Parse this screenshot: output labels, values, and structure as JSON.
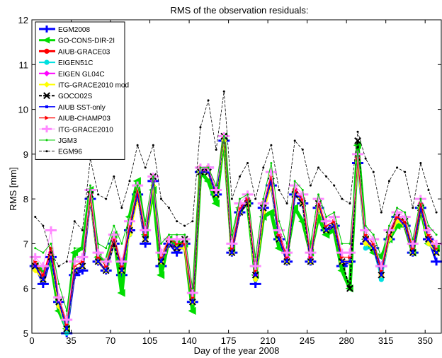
{
  "chart_data": {
    "type": "line",
    "title": "RMS of the observation residuals:",
    "xlabel": "Day of the year 2008",
    "ylabel": "RMS [mm]",
    "xlim": [
      0,
      365
    ],
    "ylim": [
      5,
      12
    ],
    "xticks": [
      0,
      35,
      70,
      105,
      140,
      175,
      210,
      245,
      280,
      315,
      350
    ],
    "yticks": [
      5,
      6,
      7,
      8,
      9,
      10,
      11,
      12
    ],
    "grid": false,
    "legend_position": "top-left",
    "x": [
      3,
      10,
      17,
      24,
      31,
      38,
      45,
      52,
      59,
      66,
      73,
      80,
      87,
      94,
      101,
      108,
      115,
      122,
      129,
      136,
      143,
      150,
      157,
      164,
      171,
      178,
      185,
      192,
      199,
      206,
      213,
      220,
      227,
      234,
      241,
      248,
      255,
      262,
      269,
      276,
      283,
      290,
      297,
      304,
      311,
      318,
      325,
      332,
      339,
      346,
      353,
      360
    ],
    "series": [
      {
        "name": "EGM2008",
        "color": "#0000ff",
        "style": "solid",
        "marker": "plus",
        "values": [
          6.5,
          6.1,
          6.7,
          5.7,
          5.0,
          6.3,
          6.4,
          8.0,
          6.6,
          6.4,
          7.0,
          6.3,
          7.3,
          8.1,
          7.0,
          8.4,
          6.5,
          7.0,
          6.8,
          7.0,
          5.7,
          8.6,
          8.7,
          8.1,
          9.3,
          6.8,
          7.7,
          7.9,
          6.1,
          7.8,
          8.3,
          7.1,
          6.6,
          8.1,
          7.9,
          6.6,
          7.8,
          7.3,
          7.4,
          6.5,
          6.6,
          8.8,
          7.0,
          6.9,
          6.5,
          7.1,
          7.6,
          7.4,
          6.8,
          7.8,
          7.1,
          6.6
        ]
      },
      {
        "name": "GO-CONS-DIR-2I",
        "color": "#00dd00",
        "style": "solid",
        "marker": "triangle-left",
        "values": [
          6.5,
          6.4,
          6.6,
          5.5,
          5.1,
          6.8,
          6.9,
          8.2,
          6.7,
          6.6,
          7.2,
          5.9,
          7.6,
          8.4,
          7.2,
          8.2,
          6.3,
          7.1,
          7.0,
          7.0,
          5.5,
          8.6,
          8.4,
          7.9,
          9.4,
          6.9,
          7.8,
          7.9,
          6.3,
          7.6,
          7.7,
          6.9,
          6.8,
          7.8,
          7.5,
          6.8,
          7.6,
          7.2,
          7.3,
          6.4,
          6.0,
          9.2,
          7.1,
          6.8,
          6.7,
          7.1,
          7.4,
          7.4,
          6.8,
          7.8,
          7.0,
          6.9
        ]
      },
      {
        "name": "AIUB-GRACE03",
        "color": "#ff0000",
        "style": "solid",
        "marker": "circle",
        "values": [
          6.5,
          6.2,
          6.8,
          5.6,
          5.1,
          6.4,
          6.5,
          8.1,
          6.6,
          6.4,
          7.1,
          6.4,
          7.3,
          8.1,
          7.1,
          8.4,
          6.6,
          7.0,
          6.9,
          6.9,
          5.7,
          8.6,
          8.6,
          8.1,
          9.4,
          6.8,
          7.7,
          8.0,
          6.3,
          7.7,
          8.4,
          7.2,
          6.6,
          8.2,
          8.0,
          6.6,
          7.9,
          7.3,
          7.4,
          6.6,
          6.6,
          8.9,
          7.1,
          6.9,
          6.3,
          7.2,
          7.6,
          7.4,
          6.8,
          7.8,
          7.1,
          6.8
        ]
      },
      {
        "name": "EIGEN51C",
        "color": "#00e0e0",
        "style": "solid",
        "marker": "circle",
        "values": [
          6.5,
          6.2,
          6.7,
          5.6,
          5.0,
          6.4,
          6.5,
          8.0,
          6.6,
          6.4,
          7.0,
          6.4,
          7.2,
          8.1,
          7.1,
          8.4,
          6.6,
          7.0,
          6.9,
          6.9,
          5.7,
          8.6,
          8.6,
          8.1,
          9.4,
          6.8,
          7.7,
          7.9,
          6.2,
          7.8,
          8.3,
          7.1,
          6.6,
          8.1,
          7.9,
          6.6,
          7.8,
          7.3,
          7.4,
          6.6,
          6.6,
          8.8,
          6.9,
          6.9,
          6.2,
          7.1,
          7.5,
          7.4,
          6.8,
          7.8,
          7.0,
          6.8
        ]
      },
      {
        "name": "EIGEN GL04C",
        "color": "#ff00ff",
        "style": "solid",
        "marker": "diamond",
        "values": [
          6.5,
          6.2,
          6.8,
          5.7,
          5.1,
          6.4,
          6.5,
          8.1,
          6.6,
          6.4,
          7.1,
          6.4,
          7.3,
          8.1,
          7.1,
          8.4,
          6.6,
          7.0,
          6.9,
          7.0,
          5.7,
          8.6,
          8.7,
          8.1,
          9.4,
          6.8,
          7.8,
          8.0,
          6.3,
          7.8,
          8.4,
          7.2,
          6.7,
          8.2,
          8.0,
          6.7,
          7.9,
          7.3,
          7.4,
          6.6,
          6.6,
          8.9,
          7.1,
          6.9,
          6.3,
          7.2,
          7.6,
          7.4,
          6.8,
          7.9,
          7.1,
          6.8
        ]
      },
      {
        "name": "ITG-GRACE2010 mod",
        "color": "#ffff00",
        "style": "solid",
        "marker": "diamond",
        "values": [
          6.4,
          6.2,
          6.7,
          5.6,
          5.1,
          6.4,
          6.5,
          8.0,
          6.6,
          6.4,
          7.0,
          6.4,
          7.2,
          8.0,
          7.1,
          8.3,
          6.6,
          7.0,
          6.9,
          6.9,
          5.7,
          8.6,
          8.6,
          8.1,
          9.3,
          6.8,
          7.7,
          7.9,
          6.2,
          7.7,
          8.3,
          7.1,
          6.6,
          8.1,
          7.9,
          6.6,
          7.8,
          7.3,
          7.4,
          6.6,
          6.6,
          8.8,
          7.0,
          6.9,
          6.3,
          7.1,
          7.5,
          7.4,
          6.8,
          7.8,
          7.0,
          6.8
        ]
      },
      {
        "name": "GOCO02S",
        "color": "#000000",
        "style": "dashed",
        "marker": "x",
        "values": [
          6.5,
          6.2,
          6.7,
          5.7,
          5.1,
          6.4,
          6.5,
          8.1,
          6.6,
          6.4,
          7.0,
          6.4,
          7.3,
          8.1,
          7.1,
          8.5,
          6.6,
          7.0,
          6.9,
          7.1,
          5.7,
          8.6,
          8.6,
          8.1,
          9.4,
          6.8,
          7.7,
          7.9,
          6.3,
          7.8,
          8.4,
          7.1,
          6.6,
          8.1,
          7.9,
          6.6,
          7.9,
          7.3,
          7.4,
          6.6,
          6.0,
          9.3,
          7.1,
          6.9,
          6.3,
          7.2,
          7.6,
          7.5,
          6.8,
          7.8,
          7.1,
          6.8
        ]
      },
      {
        "name": "AIUB SST-only",
        "color": "#0000ff",
        "style": "solid",
        "marker": "square",
        "values": [
          6.5,
          6.2,
          6.7,
          5.7,
          5.1,
          6.4,
          6.5,
          8.1,
          6.6,
          6.4,
          7.1,
          6.4,
          7.3,
          8.1,
          7.1,
          8.4,
          6.6,
          7.0,
          6.9,
          7.0,
          5.7,
          8.6,
          8.6,
          8.1,
          9.4,
          6.8,
          7.7,
          8.0,
          6.3,
          7.8,
          8.4,
          7.1,
          6.6,
          8.1,
          8.0,
          6.6,
          7.9,
          7.3,
          7.4,
          6.6,
          6.6,
          8.9,
          7.1,
          6.9,
          6.3,
          7.2,
          7.6,
          7.4,
          6.8,
          7.8,
          7.1,
          6.8
        ]
      },
      {
        "name": "AIUB-CHAMP03",
        "color": "#ff0000",
        "style": "solid",
        "marker": "triangle-right",
        "values": [
          6.6,
          6.3,
          6.9,
          5.8,
          5.2,
          6.5,
          6.6,
          8.1,
          6.7,
          6.5,
          7.1,
          6.5,
          7.4,
          8.2,
          7.2,
          8.5,
          6.7,
          7.1,
          7.0,
          7.0,
          5.8,
          8.7,
          8.7,
          8.2,
          9.4,
          6.9,
          7.8,
          8.0,
          6.4,
          7.9,
          8.5,
          7.2,
          6.7,
          8.2,
          8.0,
          6.7,
          7.9,
          7.4,
          7.5,
          6.7,
          6.7,
          8.9,
          7.2,
          7.0,
          6.4,
          7.2,
          7.6,
          7.5,
          6.9,
          7.9,
          7.2,
          6.9
        ]
      },
      {
        "name": "ITG-GRACE2010",
        "color": "#ff88ff",
        "style": "solid",
        "marker": "plus",
        "values": [
          6.7,
          6.5,
          7.3,
          5.8,
          5.3,
          6.6,
          6.7,
          8.2,
          6.8,
          6.6,
          7.2,
          6.6,
          7.5,
          8.3,
          7.3,
          8.5,
          6.8,
          7.1,
          7.1,
          7.1,
          5.9,
          8.7,
          8.7,
          8.2,
          9.4,
          7.0,
          7.9,
          8.1,
          6.5,
          7.9,
          8.6,
          7.3,
          6.8,
          8.3,
          8.1,
          6.8,
          8.0,
          7.5,
          7.6,
          6.8,
          6.8,
          9.0,
          7.3,
          7.1,
          6.5,
          7.3,
          7.7,
          7.6,
          7.0,
          8.0,
          7.3,
          7.0
        ]
      },
      {
        "name": "JGM3",
        "color": "#00cc00",
        "style": "solid",
        "marker": "dot",
        "values": [
          6.9,
          6.8,
          7.0,
          6.1,
          5.5,
          6.9,
          6.9,
          8.3,
          7.0,
          6.9,
          7.4,
          7.0,
          7.6,
          8.3,
          7.5,
          8.5,
          7.0,
          7.2,
          7.2,
          7.2,
          6.0,
          8.7,
          8.7,
          8.3,
          9.4,
          7.2,
          8.0,
          8.1,
          6.7,
          8.0,
          8.8,
          7.5,
          7.0,
          8.4,
          8.2,
          7.0,
          8.1,
          7.6,
          7.7,
          7.0,
          7.0,
          9.1,
          7.4,
          7.2,
          6.7,
          7.4,
          7.8,
          7.7,
          7.1,
          8.0,
          7.4,
          7.2
        ]
      },
      {
        "name": "EGM96",
        "color": "#000000",
        "style": "dashed",
        "marker": "dot",
        "values": [
          7.6,
          7.4,
          6.8,
          6.5,
          6.6,
          7.5,
          7.3,
          8.9,
          8.1,
          8.0,
          8.5,
          7.8,
          8.4,
          9.2,
          8.7,
          9.2,
          8.0,
          7.8,
          7.5,
          7.4,
          7.5,
          9.6,
          10.2,
          9.1,
          10.4,
          8.0,
          8.5,
          8.8,
          8.0,
          8.7,
          9.2,
          8.2,
          7.9,
          9.3,
          9.1,
          8.3,
          8.7,
          8.5,
          8.3,
          8.0,
          7.9,
          9.5,
          8.9,
          8.6,
          7.7,
          8.4,
          8.7,
          8.6,
          7.8,
          8.8,
          8.2,
          7.7
        ]
      }
    ]
  }
}
